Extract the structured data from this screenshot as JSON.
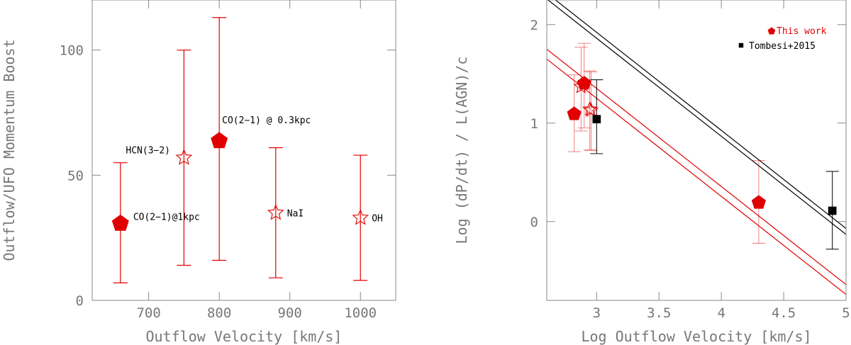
{
  "colors": {
    "red": "#e00000",
    "black": "#000000",
    "axis": "#888888",
    "label": "#777777"
  },
  "chart_data": [
    {
      "type": "scatter",
      "xlabel": "Outflow Velocity [km/s]",
      "ylabel": "Outflow/UFO Momentum Boost",
      "xlim": [
        620,
        1050
      ],
      "ylim": [
        0,
        120
      ],
      "xticks": [
        700,
        800,
        900,
        1000
      ],
      "yticks": [
        0,
        50,
        100
      ],
      "xtick_labels": [
        "700",
        "800",
        "900",
        "1000"
      ],
      "ytick_labels": [
        "0",
        "50",
        "100"
      ],
      "grid": false,
      "points": [
        {
          "label": "CO(2−1)@1kpc",
          "x": 660,
          "y": 31,
          "ylow": 7,
          "yhigh": 55,
          "marker": "filled-pentagon"
        },
        {
          "label": "HCN(3−2)",
          "x": 750,
          "y": 57,
          "ylow": 14,
          "yhigh": 100,
          "marker": "open-star"
        },
        {
          "label": "CO(2−1) @ 0.3kpc",
          "x": 800,
          "y": 64,
          "ylow": 16,
          "yhigh": 113,
          "marker": "filled-pentagon"
        },
        {
          "label": "NaI",
          "x": 880,
          "y": 35,
          "ylow": 9,
          "yhigh": 61,
          "marker": "open-star"
        },
        {
          "label": "OH",
          "x": 1000,
          "y": 33,
          "ylow": 8,
          "yhigh": 58,
          "marker": "open-star"
        }
      ]
    },
    {
      "type": "scatter",
      "xlabel": "Log Outflow Velocity [km/s]",
      "ylabel": "Log (dP/dt) / L(AGN)/c",
      "xlim": [
        2.6,
        5.0
      ],
      "ylim": [
        -0.8,
        2.25
      ],
      "xticks": [
        3,
        3.5,
        4,
        4.5,
        5
      ],
      "yticks": [
        0,
        1,
        2
      ],
      "xtick_labels": [
        "3",
        "3.5",
        "4",
        "4.5",
        "5"
      ],
      "ytick_labels": [
        "0",
        "1",
        "2"
      ],
      "grid": false,
      "legend": {
        "placement": "top-right",
        "entries": [
          {
            "label": "This work",
            "marker": "filled-pentagon",
            "color": "#e00000"
          },
          {
            "label": "Tombesi+2015",
            "marker": "filled-square",
            "color": "#000000"
          }
        ]
      },
      "series": [
        {
          "name": "This work",
          "color": "#e00000",
          "points": [
            {
              "x": 2.82,
              "y": 1.1,
              "ylow": 0.71,
              "yhigh": 1.49,
              "marker": "filled-pentagon"
            },
            {
              "x": 2.9,
              "y": 1.41,
              "ylow": 0.95,
              "yhigh": 1.81,
              "marker": "filled-pentagon"
            },
            {
              "x": 2.875,
              "y": 1.37,
              "ylow": 0.92,
              "yhigh": 1.77,
              "marker": "open-star"
            },
            {
              "x": 2.945,
              "y": 1.14,
              "ylow": 0.73,
              "yhigh": 1.53,
              "marker": "open-star"
            },
            {
              "x": 2.955,
              "y": 1.13,
              "ylow": 0.72,
              "yhigh": 1.52,
              "marker": "open-star"
            },
            {
              "x": 4.3,
              "y": 0.2,
              "ylow": -0.22,
              "yhigh": 0.62,
              "marker": "filled-pentagon"
            }
          ]
        },
        {
          "name": "Tombesi+2015",
          "color": "#000000",
          "points": [
            {
              "x": 3.0,
              "y": 1.04,
              "ylow": 0.69,
              "yhigh": 1.44,
              "marker": "filled-square"
            },
            {
              "x": 4.89,
              "y": 0.11,
              "ylow": -0.28,
              "yhigh": 0.51,
              "marker": "filled-square"
            }
          ]
        }
      ],
      "lines": [
        {
          "color": "#e00000",
          "x": [
            2.6,
            5.0
          ],
          "y": [
            1.75,
            -0.64
          ]
        },
        {
          "color": "#e00000",
          "x": [
            2.6,
            5.0
          ],
          "y": [
            1.65,
            -0.74
          ]
        },
        {
          "color": "#000000",
          "x": [
            2.6,
            5.0
          ],
          "y": [
            2.32,
            -0.07
          ]
        },
        {
          "color": "#000000",
          "x": [
            2.6,
            5.0
          ],
          "y": [
            2.26,
            -0.13
          ]
        }
      ]
    }
  ]
}
